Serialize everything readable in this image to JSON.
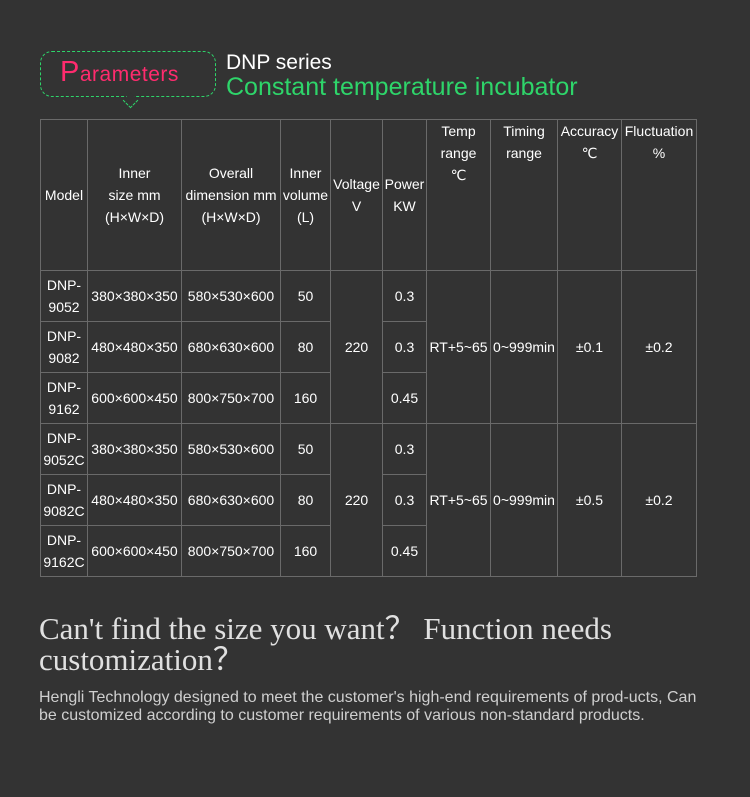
{
  "header": {
    "badge_cap": "P",
    "badge_rest": "arameters",
    "series": "DNP  series",
    "subtitle": "Constant temperature incubator"
  },
  "table": {
    "headers": {
      "model": "Model",
      "inner_size": [
        "Inner",
        "size mm",
        "(H×W×D)"
      ],
      "overall": [
        "Overall",
        "dimension mm",
        "(H×W×D)"
      ],
      "volume": [
        "Inner",
        "volume",
        "(L)"
      ],
      "voltage": [
        "Voltage",
        "V"
      ],
      "power": [
        "Power",
        "KW"
      ],
      "temp": [
        "Temp",
        "range",
        "℃"
      ],
      "timing": [
        "Timing",
        "range"
      ],
      "accuracy": [
        "Accuracy",
        "℃"
      ],
      "fluctuation": [
        "Fluctuation",
        "%"
      ]
    },
    "groups": [
      {
        "voltage": "220",
        "temp": "RT+5~65",
        "timing": "0~999min",
        "accuracy": "±0.1",
        "fluctuation": "±0.2",
        "rows": [
          {
            "model": [
              "DNP-",
              "9052"
            ],
            "inner": "380×380×350",
            "overall": "580×530×600",
            "volume": "50",
            "power": "0.3"
          },
          {
            "model": [
              "DNP-",
              "9082"
            ],
            "inner": "480×480×350",
            "overall": "680×630×600",
            "volume": "80",
            "power": "0.3"
          },
          {
            "model": [
              "DNP-",
              "9162"
            ],
            "inner": "600×600×450",
            "overall": "800×750×700",
            "volume": "160",
            "power": "0.45"
          }
        ]
      },
      {
        "voltage": "220",
        "temp": "RT+5~65",
        "timing": "0~999min",
        "accuracy": "±0.5",
        "fluctuation": "±0.2",
        "rows": [
          {
            "model": [
              "DNP-",
              "9052C"
            ],
            "inner": "380×380×350",
            "overall": "580×530×600",
            "volume": "50",
            "power": "0.3"
          },
          {
            "model": [
              "DNP-",
              "9082C"
            ],
            "inner": "480×480×350",
            "overall": "680×630×600",
            "volume": "80",
            "power": "0.3"
          },
          {
            "model": [
              "DNP-",
              "9162C"
            ],
            "inner": "600×600×450",
            "overall": "800×750×700",
            "volume": "160",
            "power": "0.45"
          }
        ]
      }
    ]
  },
  "footer": {
    "question": "Can't find the size you want？ Function needs customization？",
    "description": "Hengli Technology designed to meet the customer's high-end requirements of prod-ucts, Can be customized according to customer requirements of various non-standard products."
  }
}
